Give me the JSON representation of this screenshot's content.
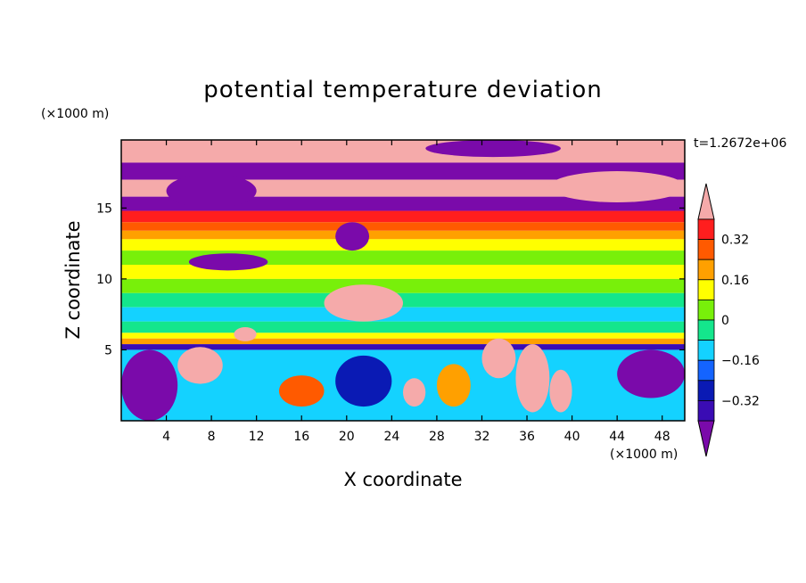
{
  "chart_data": {
    "type": "heatmap",
    "title": "potential temperature deviation",
    "xlabel": "X coordinate",
    "ylabel": "Z coordinate",
    "x_unit": "(×1000 m)",
    "y_unit": "(×1000 m)",
    "time_label": "t=1.2672e+06",
    "xlim": [
      0,
      50
    ],
    "ylim": [
      0,
      19.8
    ],
    "x_ticks": [
      4,
      8,
      12,
      16,
      20,
      24,
      28,
      32,
      36,
      40,
      44,
      48
    ],
    "y_ticks": [
      5,
      10,
      15
    ],
    "colorbar": {
      "levels": [
        -0.4,
        -0.32,
        -0.24,
        -0.16,
        -0.08,
        0,
        0.08,
        0.16,
        0.24,
        0.32,
        0.4
      ],
      "tick_labels": [
        "0.32",
        "0.16",
        "0",
        "−0.16",
        "−0.32"
      ],
      "tick_values": [
        0.32,
        0.16,
        0,
        -0.16,
        -0.32
      ],
      "colors": [
        "#7a0aaa",
        "#3a0cb4",
        "#0a1ab4",
        "#1464ff",
        "#14d2ff",
        "#14e68c",
        "#78f00a",
        "#ffff00",
        "#ffa000",
        "#ff5a00",
        "#ff1e1e",
        "#f5aaaa"
      ],
      "extend": "both"
    },
    "bands": [
      {
        "z0": 18.2,
        "z1": 19.8,
        "value": 0.45
      },
      {
        "z0": 17.0,
        "z1": 18.2,
        "value": -0.45
      },
      {
        "z0": 15.8,
        "z1": 17.0,
        "value": 0.45
      },
      {
        "z0": 14.8,
        "z1": 15.8,
        "value": -0.45
      },
      {
        "z0": 14.0,
        "z1": 14.8,
        "value": 0.36
      },
      {
        "z0": 13.4,
        "z1": 14.0,
        "value": 0.28
      },
      {
        "z0": 12.8,
        "z1": 13.4,
        "value": 0.2
      },
      {
        "z0": 12.0,
        "z1": 12.8,
        "value": 0.12
      },
      {
        "z0": 11.0,
        "z1": 12.0,
        "value": 0.05
      },
      {
        "z0": 10.0,
        "z1": 11.0,
        "value": 0.14
      },
      {
        "z0": 9.0,
        "z1": 10.0,
        "value": 0.06
      },
      {
        "z0": 8.0,
        "z1": 9.0,
        "value": -0.06
      },
      {
        "z0": 7.0,
        "z1": 8.0,
        "value": -0.12
      },
      {
        "z0": 6.2,
        "z1": 7.0,
        "value": -0.02
      },
      {
        "z0": 5.8,
        "z1": 6.2,
        "value": 0.13
      },
      {
        "z0": 5.4,
        "z1": 5.8,
        "value": 0.22
      },
      {
        "z0": 5.0,
        "z1": 5.4,
        "value": -0.36
      },
      {
        "z0": 0.0,
        "z1": 5.0,
        "value": -0.1
      }
    ],
    "features": [
      {
        "x0": 4,
        "x1": 12,
        "z0": 15.0,
        "z1": 17.4,
        "value": -0.45
      },
      {
        "x0": 27,
        "x1": 39,
        "z0": 18.6,
        "z1": 19.8,
        "value": -0.45
      },
      {
        "x0": 38,
        "x1": 50,
        "z0": 15.4,
        "z1": 17.6,
        "value": 0.45
      },
      {
        "x0": 19,
        "x1": 22,
        "z0": 12.0,
        "z1": 14.0,
        "value": -0.45
      },
      {
        "x0": 6,
        "x1": 13,
        "z0": 10.6,
        "z1": 11.8,
        "value": -0.45
      },
      {
        "x0": 18,
        "x1": 25,
        "z0": 7.0,
        "z1": 9.6,
        "value": 0.45
      },
      {
        "x0": 10,
        "x1": 12,
        "z0": 5.6,
        "z1": 6.6,
        "value": 0.45
      },
      {
        "x0": 0,
        "x1": 5,
        "z0": 0.0,
        "z1": 5.0,
        "value": -0.45
      },
      {
        "x0": 5,
        "x1": 9,
        "z0": 2.6,
        "z1": 5.2,
        "value": 0.45
      },
      {
        "x0": 44,
        "x1": 50,
        "z0": 1.6,
        "z1": 5.0,
        "value": -0.45
      },
      {
        "x0": 14,
        "x1": 18,
        "z0": 1.0,
        "z1": 3.2,
        "value": 0.3
      },
      {
        "x0": 19,
        "x1": 24,
        "z0": 1.0,
        "z1": 4.6,
        "value": -0.3
      },
      {
        "x0": 25,
        "x1": 27,
        "z0": 1.0,
        "z1": 3.0,
        "value": 0.4
      },
      {
        "x0": 28,
        "x1": 31,
        "z0": 1.0,
        "z1": 4.0,
        "value": 0.2
      },
      {
        "x0": 32,
        "x1": 35,
        "z0": 3.0,
        "z1": 5.8,
        "value": 0.45
      },
      {
        "x0": 35,
        "x1": 38,
        "z0": 0.6,
        "z1": 5.4,
        "value": 0.4
      },
      {
        "x0": 38,
        "x1": 40,
        "z0": 0.6,
        "z1": 3.6,
        "value": 0.45
      }
    ]
  }
}
